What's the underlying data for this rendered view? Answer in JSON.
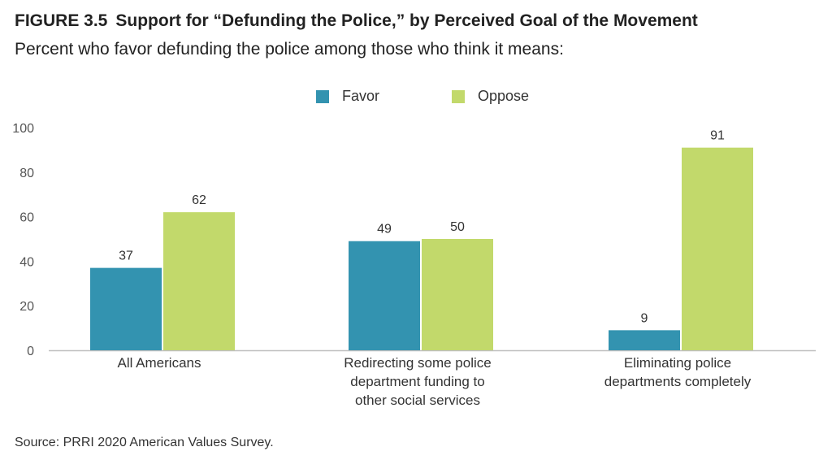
{
  "figure": {
    "label": "FIGURE 3.5",
    "title": "Support for “Defunding the Police,” by Perceived Goal of the Movement",
    "subtitle": "Percent who favor defunding the police among those who think it means:",
    "source": "Source: PRRI 2020 American Values Survey."
  },
  "colors": {
    "favor": "#3393b0",
    "oppose": "#c2d96b",
    "axis": "#bfbfbf",
    "text": "#333333"
  },
  "chart_data": {
    "type": "bar",
    "title": "Support for “Defunding the Police,” by Perceived Goal of the Movement",
    "subtitle": "Percent who favor defunding the police among those who think it means:",
    "xlabel": "",
    "ylabel": "",
    "ylim": [
      0,
      100
    ],
    "yticks": [
      0,
      20,
      40,
      60,
      80,
      100
    ],
    "grid": false,
    "legend_position": "top-center",
    "categories": [
      [
        "All Americans"
      ],
      [
        "Redirecting some police",
        "department funding to",
        "other social services"
      ],
      [
        "Eliminating police",
        "departments completely"
      ]
    ],
    "series": [
      {
        "name": "Favor",
        "color": "#3393b0",
        "values": [
          37,
          49,
          9
        ]
      },
      {
        "name": "Oppose",
        "color": "#c2d96b",
        "values": [
          62,
          50,
          91
        ]
      }
    ]
  }
}
